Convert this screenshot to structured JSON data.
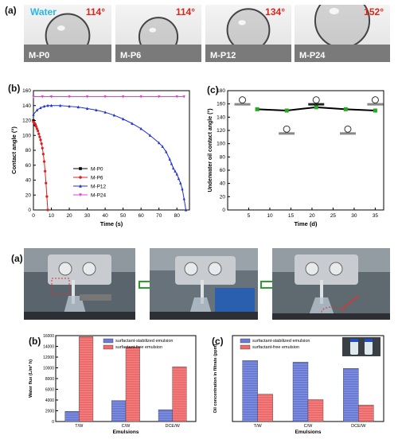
{
  "top": {
    "panel_a": "(a)",
    "water_label": "Water",
    "photos": [
      {
        "label": "M-P0",
        "angle": "114°",
        "contact_deg": 114
      },
      {
        "label": "M-P6",
        "angle": "114°",
        "contact_deg": 114
      },
      {
        "label": "M-P12",
        "angle": "134°",
        "contact_deg": 134
      },
      {
        "label": "M-P24",
        "angle": "152°",
        "contact_deg": 152
      }
    ],
    "panel_b": "(b)",
    "panel_c": "(c)"
  },
  "bottom": {
    "panel_a": "(a)",
    "panel_b": "(b)",
    "panel_c": "(c)"
  },
  "chart_data": [
    {
      "type": "line",
      "id": "contact-angle-vs-time",
      "xlabel": "Time (s)",
      "ylabel": "Contact angle (°)",
      "xlim": [
        0,
        87
      ],
      "ylim": [
        0,
        160
      ],
      "xticks": [
        0,
        10,
        20,
        30,
        40,
        50,
        60,
        70,
        80
      ],
      "yticks": [
        0,
        20,
        40,
        60,
        80,
        100,
        120,
        140,
        160
      ],
      "legend_position": "center-right",
      "series": [
        {
          "name": "M-P0",
          "color": "#000000",
          "marker": "square",
          "x": [
            0,
            1
          ],
          "y": [
            120,
            114
          ]
        },
        {
          "name": "M-P6",
          "color": "#e02020",
          "marker": "circle",
          "x": [
            0,
            0.5,
            1,
            1.5,
            2,
            2.5,
            3,
            3.5,
            4,
            4.5,
            5,
            5.5,
            6,
            6.5,
            7,
            7.5,
            8
          ],
          "y": [
            118,
            117,
            115,
            112,
            109,
            106,
            102,
            98,
            94,
            89,
            83,
            75,
            65,
            52,
            36,
            18,
            0
          ]
        },
        {
          "name": "M-P12",
          "color": "#2030d0",
          "marker": "triangle",
          "x": [
            0,
            2,
            4,
            6,
            8,
            10,
            15,
            20,
            25,
            30,
            35,
            40,
            45,
            50,
            55,
            60,
            65,
            70,
            72,
            74,
            76,
            77,
            78,
            79,
            80,
            81,
            82,
            83,
            84,
            85
          ],
          "y": [
            128,
            134,
            137,
            139,
            140,
            140,
            140,
            139,
            138,
            136,
            134,
            131,
            127,
            122,
            116,
            109,
            100,
            90,
            85,
            78,
            68,
            62,
            56,
            52,
            48,
            42,
            36,
            28,
            15,
            0
          ]
        },
        {
          "name": "M-P24",
          "color": "#e040e0",
          "marker": "triangle-down",
          "x": [
            0,
            5,
            10,
            20,
            30,
            40,
            50,
            60,
            70,
            80,
            84
          ],
          "y": [
            152,
            152,
            152,
            152,
            152,
            152,
            152,
            152,
            152,
            152,
            152
          ]
        }
      ]
    },
    {
      "type": "line",
      "id": "underwater-oil-contact-angle",
      "xlabel": "Time (d)",
      "ylabel": "Underwater oil contact angle (°)",
      "xlim": [
        0,
        37
      ],
      "ylim": [
        0,
        180
      ],
      "xticks": [
        5,
        10,
        15,
        20,
        25,
        30,
        35
      ],
      "yticks": [
        0,
        20,
        40,
        60,
        80,
        100,
        120,
        140,
        160,
        180
      ],
      "series": [
        {
          "name": "",
          "color": "#000000",
          "marker_color": "#22aa22",
          "marker": "square",
          "x": [
            7,
            14,
            21,
            28,
            35
          ],
          "y": [
            152,
            150,
            155,
            152,
            150
          ]
        }
      ]
    },
    {
      "type": "bar",
      "id": "water-flux",
      "categories": [
        "T/W",
        "C/W",
        "DCE/W"
      ],
      "xlabel": "Emulsions",
      "ylabel": "Water flux (L/m² h)",
      "ylim": [
        0,
        16000
      ],
      "yticks": [
        0,
        2000,
        4000,
        6000,
        8000,
        10000,
        12000,
        14000,
        16000
      ],
      "legend_position": "top-right",
      "series": [
        {
          "name": "surfactant-stabilized emulsion",
          "color": "#6a7bd6",
          "values": [
            1900,
            3900,
            2200
          ]
        },
        {
          "name": "surfactant-free emulsion",
          "color": "#ee6a6a",
          "values": [
            15800,
            13900,
            10200
          ]
        }
      ]
    },
    {
      "type": "bar",
      "id": "oil-concentration",
      "categories": [
        "T/W",
        "C/W",
        "DCE/W"
      ],
      "xlabel": "Emulsions",
      "ylabel": "Oil concentration in filtrate (ppm)",
      "ylim": [
        0,
        110
      ],
      "legend_position": "top-left",
      "series": [
        {
          "name": "surfactant-stabilized emulsion",
          "color": "#6a7bd6",
          "values": [
            78,
            76,
            68
          ]
        },
        {
          "name": "surfactant-free emulsion",
          "color": "#ee6a6a",
          "values": [
            35,
            28,
            21
          ]
        }
      ]
    }
  ]
}
